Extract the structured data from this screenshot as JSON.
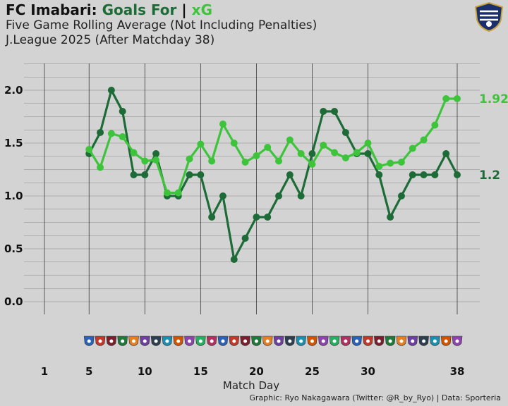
{
  "header": {
    "team": "FC Imabari:",
    "goals_label": "Goals For",
    "divider": "|",
    "xg_label": "xG",
    "subtitle1": "Five Game Rolling Average (Not Including Penalties)",
    "subtitle2": "J.League 2025 (After Matchday 38)"
  },
  "footer": {
    "xlabel": "Match Day",
    "credit": "Graphic: Ryo Nakagawara (Twitter: @R_by_Ryo) | Data: Sporteria"
  },
  "colors": {
    "goals": "#1d6b36",
    "xg": "#3dc43b",
    "background": "#d3d3d3",
    "grid": "#8a8a8a"
  },
  "chart_data": {
    "type": "line",
    "title": "FC Imabari: Goals For | xG",
    "xlabel": "Match Day",
    "ylabel": "",
    "xlim": [
      1,
      38
    ],
    "ylim": [
      0,
      2
    ],
    "x_ticks": [
      1,
      5,
      10,
      15,
      20,
      25,
      30,
      38
    ],
    "y_ticks": [
      "0.0",
      "0.5",
      "1.0",
      "1.5",
      "2.0"
    ],
    "grid": true,
    "x": [
      5,
      6,
      7,
      8,
      9,
      10,
      11,
      12,
      13,
      14,
      15,
      16,
      17,
      18,
      19,
      20,
      21,
      22,
      23,
      24,
      25,
      26,
      27,
      28,
      29,
      30,
      31,
      32,
      33,
      34,
      35,
      36,
      37,
      38
    ],
    "series": [
      {
        "name": "Goals For",
        "color": "#1d6b36",
        "end_label": "1.2",
        "values": [
          1.4,
          1.6,
          2.0,
          1.8,
          1.2,
          1.2,
          1.4,
          1.0,
          1.0,
          1.2,
          1.2,
          0.8,
          1.0,
          0.4,
          0.6,
          0.8,
          0.8,
          1.0,
          1.2,
          1.0,
          1.4,
          1.8,
          1.8,
          1.6,
          1.4,
          1.4,
          1.2,
          0.8,
          1.0,
          1.2,
          1.2,
          1.2,
          1.4,
          1.2
        ]
      },
      {
        "name": "xG",
        "color": "#3dc43b",
        "end_label": "1.92",
        "values": [
          1.44,
          1.27,
          1.59,
          1.56,
          1.41,
          1.33,
          1.34,
          1.03,
          1.03,
          1.35,
          1.49,
          1.33,
          1.68,
          1.5,
          1.32,
          1.38,
          1.46,
          1.33,
          1.53,
          1.4,
          1.3,
          1.48,
          1.41,
          1.36,
          1.41,
          1.5,
          1.28,
          1.31,
          1.32,
          1.45,
          1.53,
          1.67,
          1.92,
          1.92
        ]
      }
    ],
    "opponent_crest_icons": [
      "crest-icon"
    ]
  }
}
